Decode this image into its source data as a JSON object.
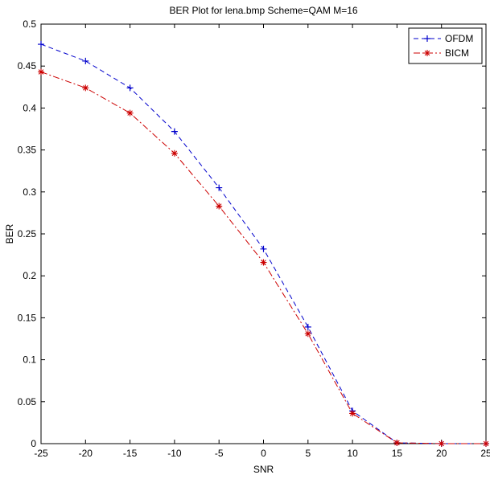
{
  "chart_data": {
    "type": "line",
    "title": "BER Plot for lena.bmp Scheme=QAM M=16",
    "xlabel": "SNR",
    "ylabel": "BER",
    "xlim": [
      -25,
      25
    ],
    "ylim": [
      0,
      0.5
    ],
    "xticks": [
      -25,
      -20,
      -15,
      -10,
      -5,
      0,
      5,
      10,
      15,
      20,
      25
    ],
    "xtick_labels": [
      "-25",
      "-20",
      "-15",
      "-10",
      "-5",
      "0",
      "5",
      "10",
      "15",
      "20",
      "25"
    ],
    "yticks": [
      0,
      0.05,
      0.1,
      0.15,
      0.2,
      0.25,
      0.3,
      0.35,
      0.4,
      0.45,
      0.5
    ],
    "ytick_labels": [
      "0",
      "0.05",
      "0.1",
      "0.15",
      "0.2",
      "0.25",
      "0.3",
      "0.35",
      "0.4",
      "0.45",
      "0.5"
    ],
    "grid": false,
    "legend_position": "top-right",
    "x": [
      -25,
      -20,
      -15,
      -10,
      -5,
      0,
      5,
      10,
      15,
      20,
      25
    ],
    "series": [
      {
        "name": "OFDM",
        "values": [
          0.476,
          0.456,
          0.424,
          0.372,
          0.305,
          0.232,
          0.139,
          0.039,
          0.001,
          0.0,
          0.0
        ],
        "color": "#0000cc",
        "line_style": "dashed",
        "marker": "plus"
      },
      {
        "name": "BICM",
        "values": [
          0.443,
          0.424,
          0.394,
          0.346,
          0.283,
          0.216,
          0.131,
          0.036,
          0.001,
          0.0,
          0.0
        ],
        "color": "#cc0000",
        "line_style": "dash-dot",
        "marker": "star"
      }
    ]
  }
}
